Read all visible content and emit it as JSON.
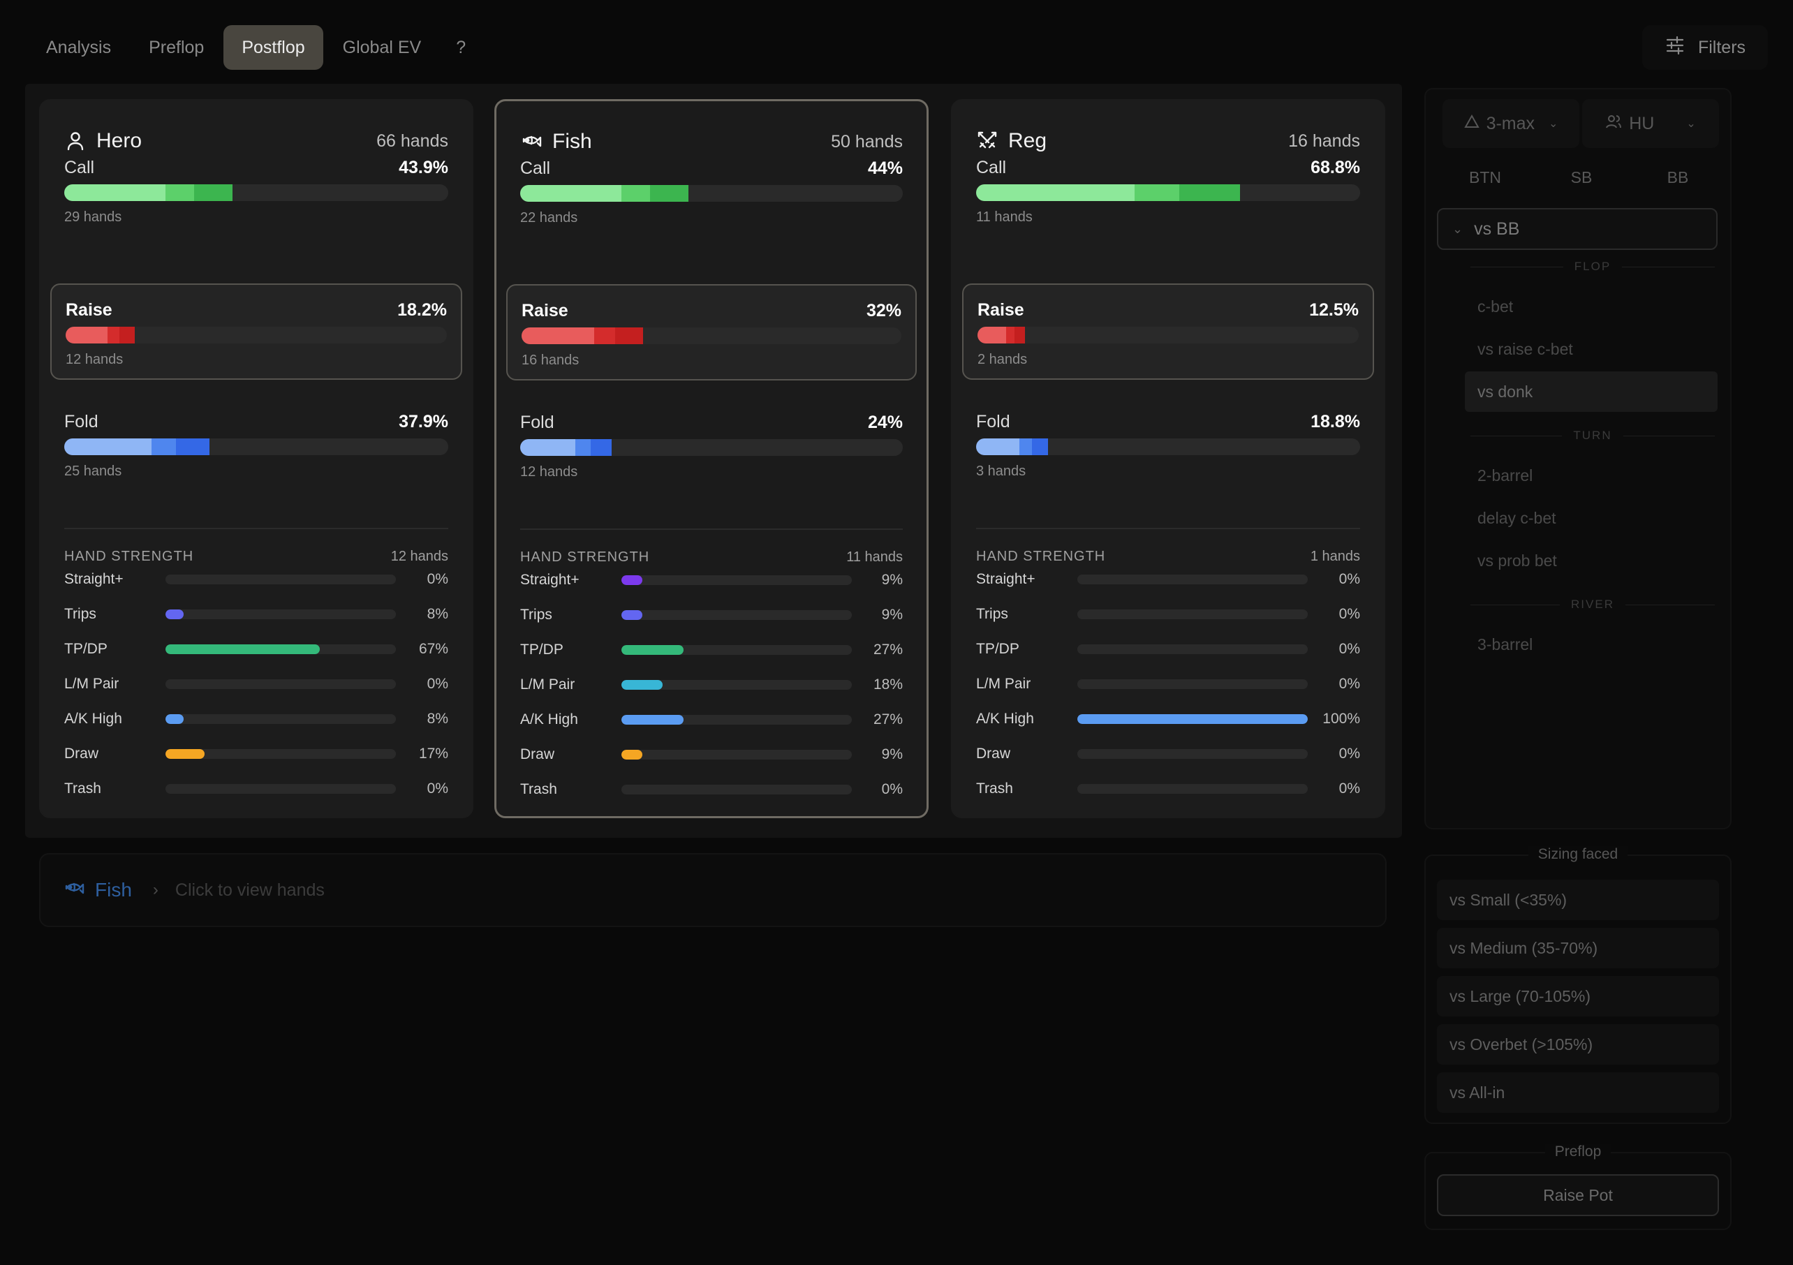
{
  "nav": {
    "tabs": [
      "Analysis",
      "Preflop",
      "Postflop",
      "Global EV",
      "?"
    ],
    "active_tab": "Postflop",
    "filters_label": "Filters"
  },
  "players": [
    {
      "name": "Hero",
      "icon": "user-icon",
      "hands": "66 hands",
      "actions": [
        {
          "name": "Call",
          "pct": "43.9%",
          "hands": "29 hands",
          "fill": 0.439
        },
        {
          "name": "Raise",
          "pct": "18.2%",
          "hands": "12 hands",
          "fill": 0.182
        },
        {
          "name": "Fold",
          "pct": "37.9%",
          "hands": "25 hands",
          "fill": 0.379
        }
      ],
      "hs_count": "12 hands",
      "strength": [
        {
          "label": "Straight+",
          "pct": "0%",
          "value": 0,
          "color": "#7c3aed"
        },
        {
          "label": "Trips",
          "pct": "8%",
          "value": 0.08,
          "color": "#6366f1"
        },
        {
          "label": "TP/DP",
          "pct": "67%",
          "value": 0.67,
          "color": "#34b97a"
        },
        {
          "label": "L/M Pair",
          "pct": "0%",
          "value": 0,
          "color": "#38b6d6"
        },
        {
          "label": "A/K High",
          "pct": "8%",
          "value": 0.08,
          "color": "#5b9cf2"
        },
        {
          "label": "Draw",
          "pct": "17%",
          "value": 0.17,
          "color": "#f5a623"
        },
        {
          "label": "Trash",
          "pct": "0%",
          "value": 0,
          "color": "#6b6b6b"
        }
      ]
    },
    {
      "name": "Fish",
      "icon": "fish-icon",
      "hands": "50 hands",
      "actions": [
        {
          "name": "Call",
          "pct": "44%",
          "hands": "22 hands",
          "fill": 0.44
        },
        {
          "name": "Raise",
          "pct": "32%",
          "hands": "16 hands",
          "fill": 0.32
        },
        {
          "name": "Fold",
          "pct": "24%",
          "hands": "12 hands",
          "fill": 0.24
        }
      ],
      "hs_count": "11 hands",
      "strength": [
        {
          "label": "Straight+",
          "pct": "9%",
          "value": 0.09,
          "color": "#7c3aed"
        },
        {
          "label": "Trips",
          "pct": "9%",
          "value": 0.09,
          "color": "#6366f1"
        },
        {
          "label": "TP/DP",
          "pct": "27%",
          "value": 0.27,
          "color": "#34b97a"
        },
        {
          "label": "L/M Pair",
          "pct": "18%",
          "value": 0.18,
          "color": "#38b6d6"
        },
        {
          "label": "A/K High",
          "pct": "27%",
          "value": 0.27,
          "color": "#5b9cf2"
        },
        {
          "label": "Draw",
          "pct": "9%",
          "value": 0.09,
          "color": "#f5a623"
        },
        {
          "label": "Trash",
          "pct": "0%",
          "value": 0,
          "color": "#6b6b6b"
        }
      ]
    },
    {
      "name": "Reg",
      "icon": "swords-icon",
      "hands": "16 hands",
      "actions": [
        {
          "name": "Call",
          "pct": "68.8%",
          "hands": "11 hands",
          "fill": 0.688
        },
        {
          "name": "Raise",
          "pct": "12.5%",
          "hands": "2 hands",
          "fill": 0.125
        },
        {
          "name": "Fold",
          "pct": "18.8%",
          "hands": "3 hands",
          "fill": 0.188
        }
      ],
      "hs_count": "1 hands",
      "strength": [
        {
          "label": "Straight+",
          "pct": "0%",
          "value": 0,
          "color": "#7c3aed"
        },
        {
          "label": "Trips",
          "pct": "0%",
          "value": 0,
          "color": "#6366f1"
        },
        {
          "label": "TP/DP",
          "pct": "0%",
          "value": 0,
          "color": "#34b97a"
        },
        {
          "label": "L/M Pair",
          "pct": "0%",
          "value": 0,
          "color": "#38b6d6"
        },
        {
          "label": "A/K High",
          "pct": "100%",
          "value": 1.0,
          "color": "#5b9cf2"
        },
        {
          "label": "Draw",
          "pct": "0%",
          "value": 0,
          "color": "#f5a623"
        },
        {
          "label": "Trash",
          "pct": "0%",
          "value": 0,
          "color": "#6b6b6b"
        }
      ]
    }
  ],
  "hand_strength_title": "HAND STRENGTH",
  "breadcrumb": {
    "player": "Fish",
    "hint": "Click to view hands"
  },
  "sidebar": {
    "table_size": "3-max",
    "mode": "HU",
    "positions": [
      "BTN",
      "SB",
      "BB"
    ],
    "vs_select": "vs BB",
    "streets": [
      {
        "name": "FLOP",
        "spots": [
          "c-bet",
          "vs raise c-bet",
          "vs donk"
        ]
      },
      {
        "name": "TURN",
        "spots": [
          "2-barrel",
          "delay c-bet",
          "vs prob bet"
        ]
      },
      {
        "name": "RIVER",
        "spots": [
          "3-barrel"
        ]
      }
    ],
    "active_spot": "vs donk",
    "sizing_title": "Sizing faced",
    "sizings": [
      "vs Small (<35%)",
      "vs Medium (35-70%)",
      "vs Large (70-105%)",
      "vs Overbet (>105%)",
      "vs All-in"
    ],
    "preflop_title": "Preflop",
    "preflop_button": "Raise Pot"
  },
  "colors": {
    "call": [
      "#8de89a",
      "#5cd06a",
      "#3cb54f"
    ],
    "raise": [
      "#e85c5c",
      "#d42c2c",
      "#c41f1f"
    ],
    "fold": [
      "#8fb6f5",
      "#4f86ee",
      "#3468e6"
    ]
  }
}
